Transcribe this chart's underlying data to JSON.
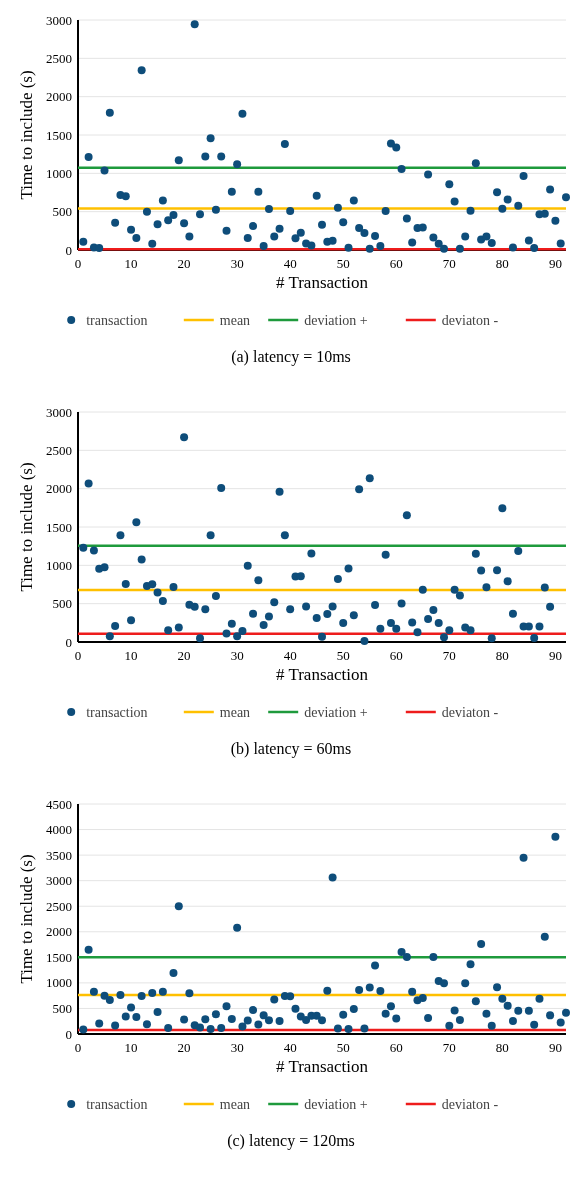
{
  "chart_data": [
    {
      "type": "scatter",
      "title": "(a)  latency = 10ms",
      "xlabel": "# Transaction",
      "ylabel": "Time to include (s)",
      "xlim": [
        0,
        92
      ],
      "ylim": [
        0,
        3000
      ],
      "xticks": [
        0,
        10,
        20,
        30,
        40,
        50,
        60,
        70,
        80,
        90
      ],
      "yticks": [
        0,
        500,
        1000,
        1500,
        2000,
        2500,
        3000
      ],
      "grid": "y",
      "legend": "bottom",
      "marker": "circle",
      "x": [
        1,
        2,
        3,
        4,
        5,
        6,
        7,
        8,
        9,
        10,
        11,
        12,
        13,
        14,
        15,
        16,
        17,
        18,
        19,
        20,
        21,
        22,
        23,
        24,
        25,
        26,
        27,
        28,
        29,
        30,
        31,
        32,
        33,
        34,
        35,
        36,
        37,
        38,
        39,
        40,
        41,
        42,
        43,
        44,
        45,
        46,
        47,
        48,
        49,
        50,
        51,
        52,
        53,
        54,
        55,
        56,
        57,
        58,
        59,
        60,
        61,
        62,
        63,
        64,
        65,
        66,
        67,
        68,
        69,
        70,
        71,
        72,
        73,
        74,
        75,
        76,
        77,
        78,
        79,
        80,
        81,
        82,
        83,
        84,
        85,
        86,
        87,
        88,
        89,
        90,
        91,
        92
      ],
      "series": [
        {
          "name": "transaction",
          "color": "#0e4d7a",
          "values": [
            107,
            1213,
            34,
            26,
            1038,
            1789,
            354,
            717,
            700,
            265,
            158,
            2344,
            500,
            81,
            337,
            645,
            389,
            457,
            1170,
            350,
            175,
            2946,
            465,
            1221,
            1456,
            525,
            1221,
            252,
            760,
            1119,
            1776,
            158,
            312,
            760,
            51,
            534,
            175,
            278,
            1383,
            508,
            154,
            226,
            85,
            60,
            709,
            329,
            107,
            120,
            551,
            363,
            30,
            645,
            286,
            222,
            17,
            184,
            51,
            508,
            1388,
            1337,
            1055,
            410,
            98,
            286,
            295,
            986,
            162,
            81,
            17,
            858,
            632,
            17,
            175,
            512,
            1132,
            137,
            175,
            90,
            752,
            538,
            658,
            34,
            576,
            965,
            124,
            26,
            465,
            474,
            790,
            380,
            85,
            687
          ]
        }
      ],
      "ref_lines": [
        {
          "axis": "y",
          "value": 542,
          "label": "mean",
          "color": "#ffc000"
        },
        {
          "axis": "y",
          "value": 1072,
          "label": "deviation +",
          "color": "#1e9a3c"
        },
        {
          "axis": "y",
          "value": 10,
          "label": "deviaton -",
          "color": "#ee1c1c"
        }
      ]
    },
    {
      "type": "scatter",
      "title": "(b)  latency = 60ms",
      "xlabel": "# Transaction",
      "ylabel": "Time to include (s)",
      "xlim": [
        0,
        92
      ],
      "ylim": [
        0,
        3000
      ],
      "xticks": [
        0,
        10,
        20,
        30,
        40,
        50,
        60,
        70,
        80,
        90
      ],
      "yticks": [
        0,
        500,
        1000,
        1500,
        2000,
        2500,
        3000
      ],
      "grid": "y",
      "legend": "bottom",
      "marker": "circle",
      "x": [
        1,
        2,
        3,
        4,
        5,
        6,
        7,
        8,
        9,
        10,
        11,
        12,
        13,
        14,
        15,
        16,
        17,
        18,
        19,
        20,
        21,
        22,
        23,
        24,
        25,
        26,
        27,
        28,
        29,
        30,
        31,
        32,
        33,
        34,
        35,
        36,
        37,
        38,
        39,
        40,
        41,
        42,
        43,
        44,
        45,
        46,
        47,
        48,
        49,
        50,
        51,
        52,
        53,
        54,
        55,
        56,
        57,
        58,
        59,
        60,
        61,
        62,
        63,
        64,
        65,
        66,
        67,
        68,
        69,
        70,
        71,
        72,
        73,
        74,
        75,
        76,
        77,
        78,
        79,
        80,
        81,
        82,
        83,
        84,
        85,
        86,
        87,
        88,
        89
      ],
      "series": [
        {
          "name": "transaction",
          "color": "#0e4d7a",
          "values": [
            1229,
            2067,
            1192,
            954,
            974,
            74,
            210,
            1393,
            756,
            284,
            1562,
            1077,
            732,
            752,
            645,
            534,
            152,
            719,
            189,
            2672,
            485,
            460,
            49,
            427,
            1393,
            600,
            2010,
            111,
            238,
            74,
            144,
            995,
            370,
            806,
            222,
            333,
            518,
            1960,
            1393,
            427,
            855,
            859,
            464,
            1155,
            312,
            70,
            366,
            464,
            822,
            247,
            958,
            349,
            1993,
            12,
            2137,
            481,
            173,
            1138,
            247,
            173,
            501,
            1652,
            255,
            127,
            682,
            300,
            419,
            247,
            62,
            152,
            682,
            608,
            189,
            152,
            1151,
            933,
            715,
            49,
            937,
            1743,
            793,
            370,
            1188,
            201,
            201,
            53,
            201,
            711,
            460
          ]
        }
      ],
      "ref_lines": [
        {
          "axis": "y",
          "value": 678,
          "label": "mean",
          "color": "#ffc000"
        },
        {
          "axis": "y",
          "value": 1254,
          "label": "deviation +",
          "color": "#1e9a3c"
        },
        {
          "axis": "y",
          "value": 107,
          "label": "deviaton -",
          "color": "#ee1c1c"
        }
      ]
    },
    {
      "type": "scatter",
      "title": "(c)  latency = 120ms",
      "xlabel": "# Transaction",
      "ylabel": "Time to include (s)",
      "xlim": [
        0,
        92
      ],
      "ylim": [
        0,
        4500
      ],
      "xticks": [
        0,
        10,
        20,
        30,
        40,
        50,
        60,
        70,
        80,
        90
      ],
      "yticks": [
        0,
        500,
        1000,
        1500,
        2000,
        2500,
        3000,
        3500,
        4000,
        4500
      ],
      "grid": "y",
      "legend": "bottom",
      "marker": "circle",
      "x": [
        1,
        2,
        3,
        4,
        5,
        6,
        7,
        8,
        9,
        10,
        11,
        12,
        13,
        14,
        15,
        16,
        17,
        18,
        19,
        20,
        21,
        22,
        23,
        24,
        25,
        26,
        27,
        28,
        29,
        30,
        31,
        32,
        33,
        34,
        35,
        36,
        37,
        38,
        39,
        40,
        41,
        42,
        43,
        44,
        45,
        46,
        47,
        48,
        49,
        50,
        51,
        52,
        53,
        54,
        55,
        56,
        57,
        58,
        59,
        60,
        61,
        62,
        63,
        64,
        65,
        66,
        67,
        68,
        69,
        70,
        71,
        72,
        73,
        74,
        75,
        76,
        77,
        78,
        79,
        80,
        81,
        82,
        83,
        84,
        85,
        86,
        87,
        88,
        89,
        90,
        91,
        92
      ],
      "series": [
        {
          "name": "transaction",
          "color": "#0e4d7a",
          "values": [
            90,
            1647,
            827,
            205,
            750,
            667,
            167,
            763,
            340,
            519,
            333,
            744,
            192,
            801,
            429,
            827,
            115,
            1192,
            2500,
            282,
            795,
            173,
            128,
            288,
            96,
            385,
            115,
            545,
            295,
            2077,
            147,
            263,
            468,
            186,
            365,
            269,
            673,
            256,
            744,
            737,
            494,
            340,
            276,
            359,
            359,
            269,
            846,
            3064,
            109,
            378,
            96,
            487,
            859,
            109,
            910,
            1340,
            840,
            397,
            545,
            301,
            1603,
            1506,
            827,
            660,
            705,
            314,
            1506,
            1038,
            994,
            160,
            462,
            276,
            994,
            1365,
            641,
            1763,
            397,
            160,
            917,
            692,
            551,
            256,
            455,
            3449,
            455,
            179,
            692,
            1904,
            365,
            3859,
            224,
            417
          ]
        }
      ],
      "ref_lines": [
        {
          "axis": "y",
          "value": 763,
          "label": "mean",
          "color": "#ffc000"
        },
        {
          "axis": "y",
          "value": 1500,
          "label": "deviation +",
          "color": "#1e9a3c"
        },
        {
          "axis": "y",
          "value": 77,
          "label": "deviaton -",
          "color": "#ee1c1c"
        }
      ]
    }
  ]
}
